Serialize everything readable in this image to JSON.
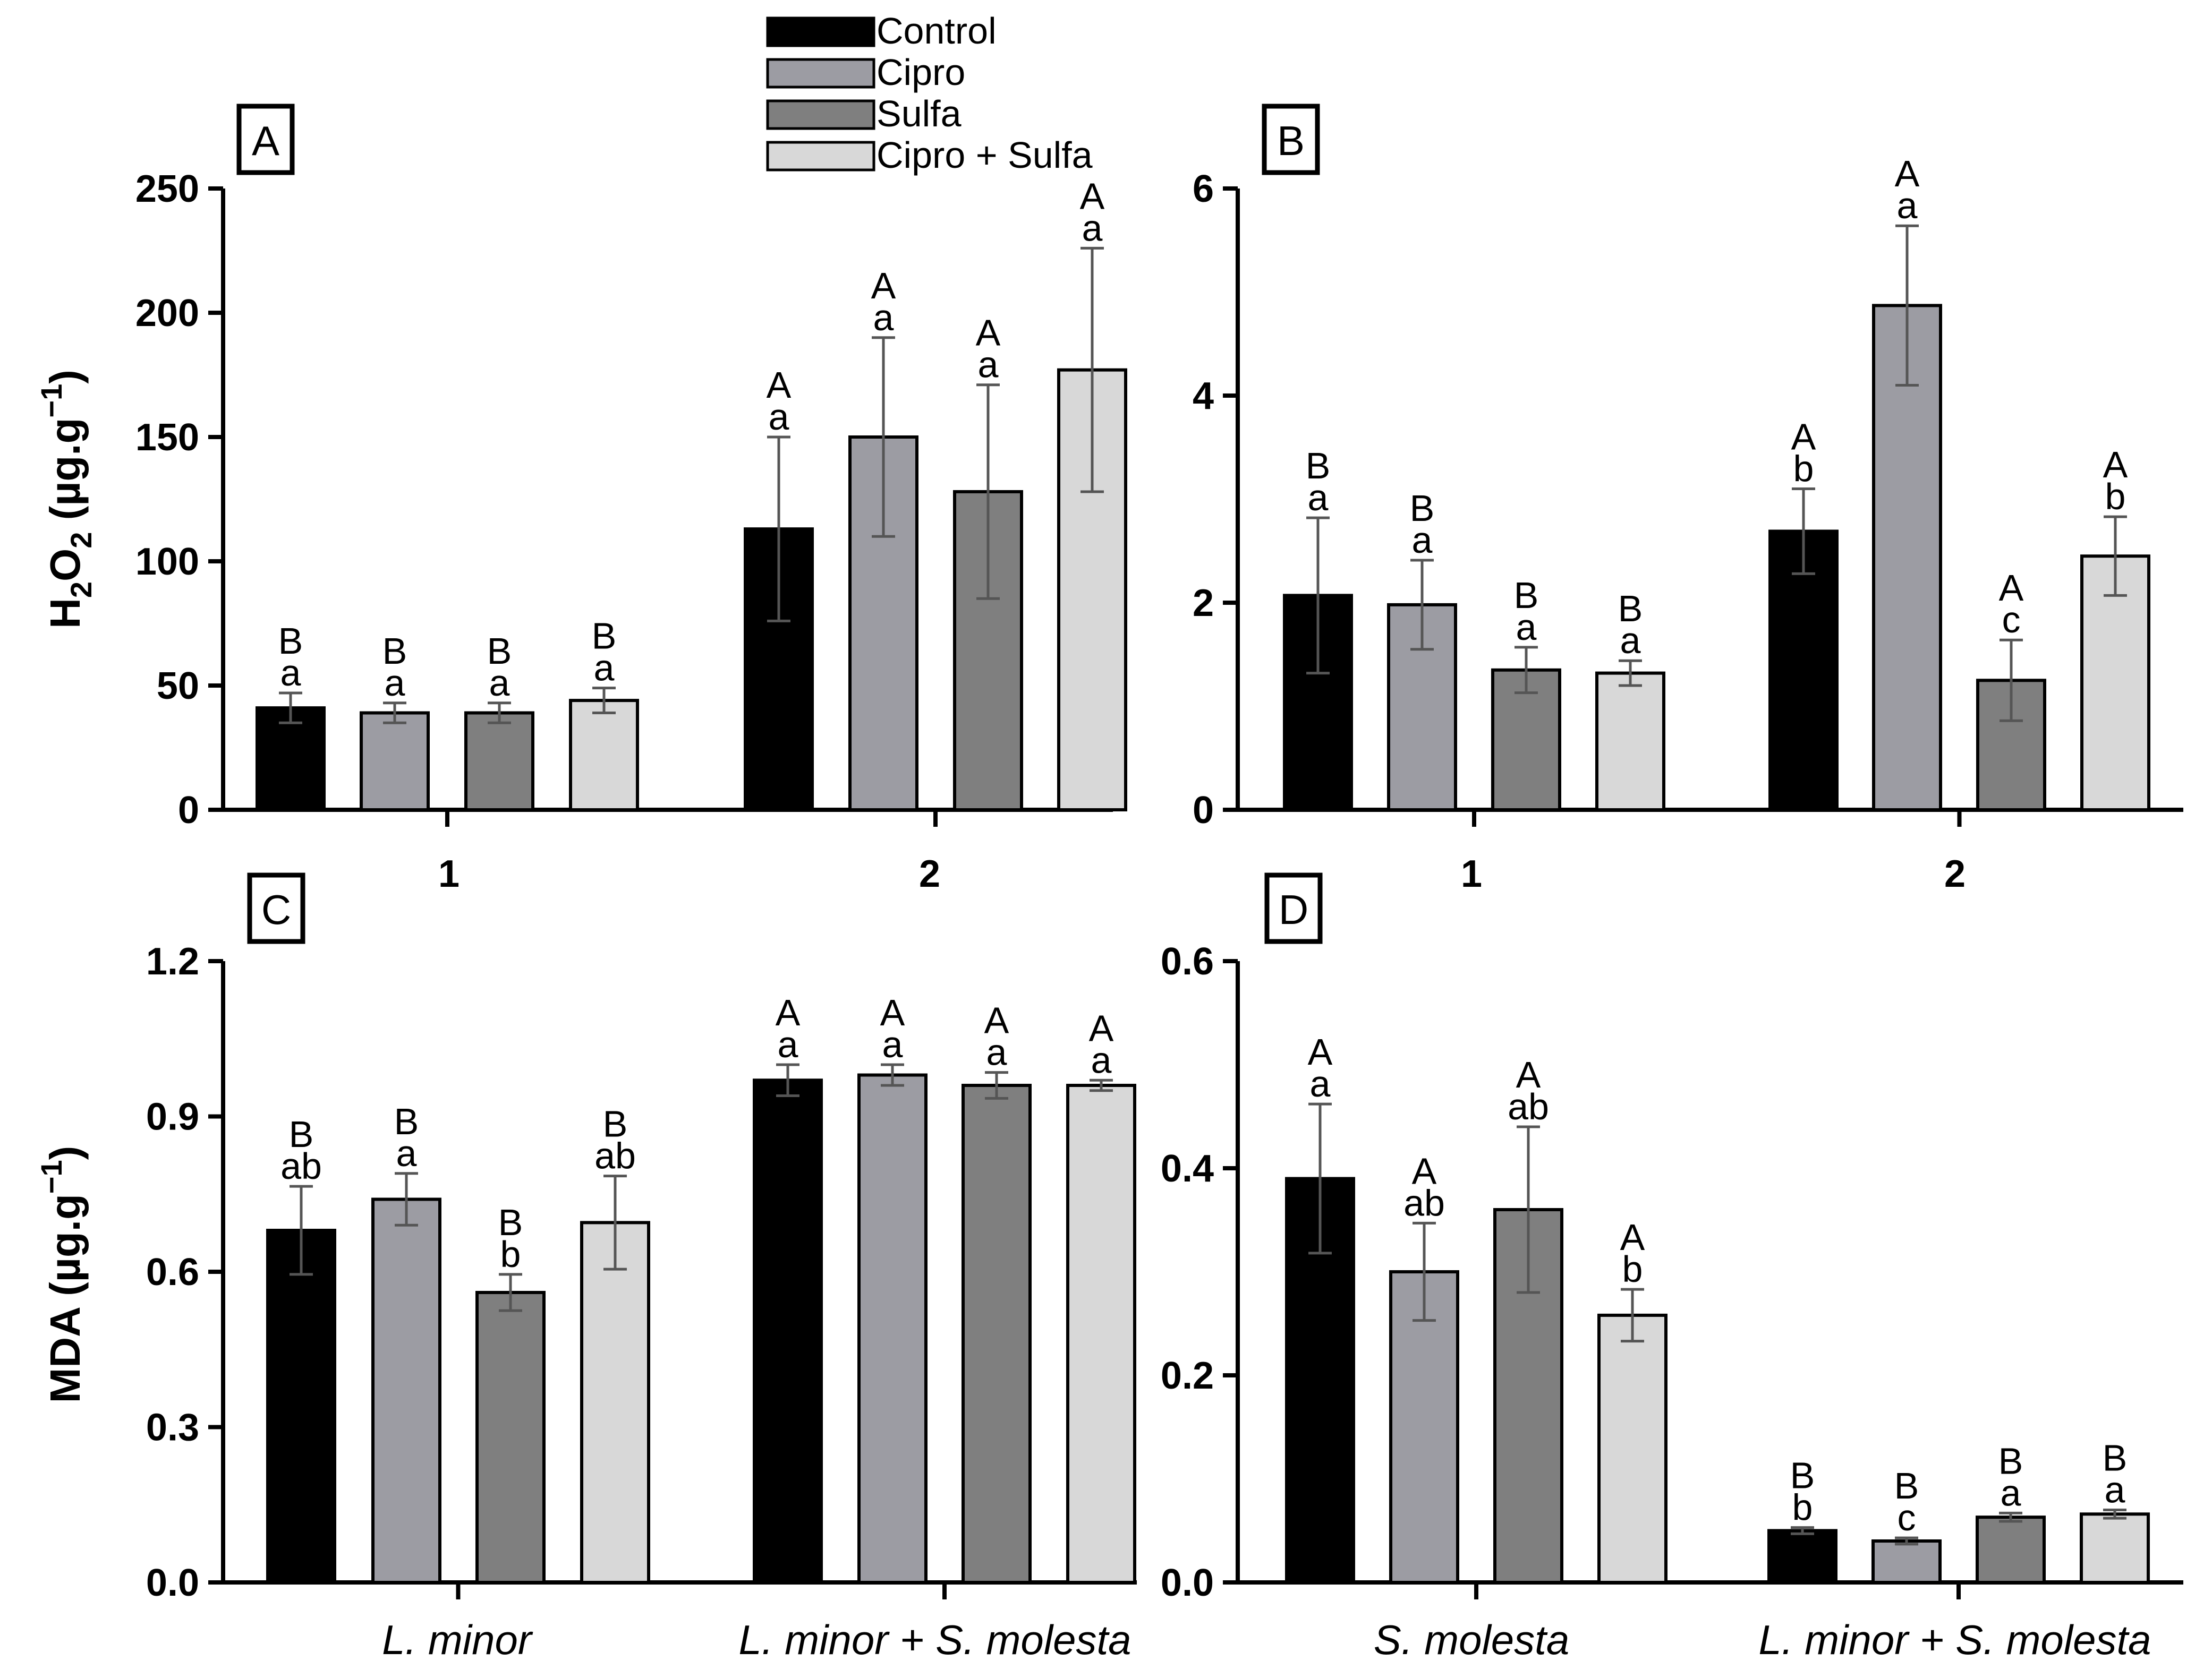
{
  "legend": {
    "items": [
      {
        "label": "Control",
        "color": "#000000"
      },
      {
        "label": "Cipro",
        "color": "#9c9ca3"
      },
      {
        "label": "Sulfa",
        "color": "#7f7f7f"
      },
      {
        "label": "Cipro + Sulfa",
        "color": "#d8d8d8"
      }
    ]
  },
  "chart_data": [
    {
      "panel": "A",
      "type": "bar",
      "ylabel_main": "H",
      "ylabel_sub1": "2",
      "ylabel_mid": "O",
      "ylabel_sub2": "2",
      "ylabel_unit": " (µg.g",
      "ylabel_sup": "−1",
      "ylabel_close": ")",
      "ylim": [
        0,
        250
      ],
      "yticks": [
        "0",
        "50",
        "100",
        "150",
        "200",
        "250"
      ],
      "categories": [
        "1",
        "2"
      ],
      "series": [
        {
          "name": "Control",
          "values": [
            41,
            113
          ],
          "errors": [
            6,
            37
          ],
          "letters": [
            [
              "B",
              "a"
            ],
            [
              "A",
              "a"
            ]
          ]
        },
        {
          "name": "Cipro",
          "values": [
            39,
            150
          ],
          "errors": [
            4,
            40
          ],
          "letters": [
            [
              "B",
              "a"
            ],
            [
              "A",
              "a"
            ]
          ]
        },
        {
          "name": "Sulfa",
          "values": [
            39,
            128
          ],
          "errors": [
            4,
            43
          ],
          "letters": [
            [
              "B",
              "a"
            ],
            [
              "A",
              "a"
            ]
          ]
        },
        {
          "name": "Cipro + Sulfa",
          "values": [
            44,
            177
          ],
          "errors": [
            5,
            49
          ],
          "letters": [
            [
              "B",
              "a"
            ],
            [
              "A",
              "a"
            ]
          ]
        }
      ]
    },
    {
      "panel": "B",
      "type": "bar",
      "ylim": [
        0,
        6
      ],
      "yticks": [
        "0",
        "2",
        "4",
        "6"
      ],
      "categories": [
        "1",
        "2"
      ],
      "series": [
        {
          "name": "Control",
          "values": [
            2.07,
            2.69
          ],
          "errors": [
            0.75,
            0.41
          ],
          "letters": [
            [
              "B",
              "a"
            ],
            [
              "A",
              "b"
            ]
          ]
        },
        {
          "name": "Cipro",
          "values": [
            1.98,
            4.87
          ],
          "errors": [
            0.43,
            0.77
          ],
          "letters": [
            [
              "B",
              "a"
            ],
            [
              "A",
              "a"
            ]
          ]
        },
        {
          "name": "Sulfa",
          "values": [
            1.35,
            1.25
          ],
          "errors": [
            0.22,
            0.39
          ],
          "letters": [
            [
              "B",
              "a"
            ],
            [
              "A",
              "c"
            ]
          ]
        },
        {
          "name": "Cipro + Sulfa",
          "values": [
            1.32,
            2.45
          ],
          "errors": [
            0.12,
            0.38
          ],
          "letters": [
            [
              "B",
              "a"
            ],
            [
              "A",
              "b"
            ]
          ]
        }
      ]
    },
    {
      "panel": "C",
      "type": "bar",
      "ylabel": "MDA (µg.g",
      "ylabel_sup": "−1",
      "ylabel_close": ")",
      "ylim": [
        0,
        1.2
      ],
      "yticks": [
        "0.0",
        "0.3",
        "0.6",
        "0.9",
        "1.2"
      ],
      "categories": [
        "L. minor",
        "L. minor + S. molesta"
      ],
      "series": [
        {
          "name": "Control",
          "values": [
            0.68,
            0.97
          ],
          "errors": [
            0.085,
            0.03
          ],
          "letters": [
            [
              "B",
              "ab"
            ],
            [
              "A",
              "a"
            ]
          ]
        },
        {
          "name": "Cipro",
          "values": [
            0.74,
            0.98
          ],
          "errors": [
            0.05,
            0.02
          ],
          "letters": [
            [
              "B",
              "a"
            ],
            [
              "A",
              "a"
            ]
          ]
        },
        {
          "name": "Sulfa",
          "values": [
            0.56,
            0.96
          ],
          "errors": [
            0.035,
            0.025
          ],
          "letters": [
            [
              "B",
              "b"
            ],
            [
              "A",
              "a"
            ]
          ]
        },
        {
          "name": "Cipro + Sulfa",
          "values": [
            0.695,
            0.96
          ],
          "errors": [
            0.09,
            0.01
          ],
          "letters": [
            [
              "B",
              "ab"
            ],
            [
              "A",
              "a"
            ]
          ]
        }
      ]
    },
    {
      "panel": "D",
      "type": "bar",
      "ylim": [
        0,
        0.6
      ],
      "yticks": [
        "0.0",
        "0.2",
        "0.4",
        "0.6"
      ],
      "categories": [
        "S. molesta",
        "L. minor + S. molesta"
      ],
      "series": [
        {
          "name": "Control",
          "values": [
            0.39,
            0.05
          ],
          "errors": [
            0.072,
            0.003
          ],
          "letters": [
            [
              "A",
              "a"
            ],
            [
              "B",
              "b"
            ]
          ]
        },
        {
          "name": "Cipro",
          "values": [
            0.3,
            0.04
          ],
          "errors": [
            0.047,
            0.003
          ],
          "letters": [
            [
              "A",
              "ab"
            ],
            [
              "B",
              "c"
            ]
          ]
        },
        {
          "name": "Sulfa",
          "values": [
            0.36,
            0.063
          ],
          "errors": [
            0.08,
            0.004
          ],
          "letters": [
            [
              "A",
              "ab"
            ],
            [
              "B",
              "a"
            ]
          ]
        },
        {
          "name": "Cipro + Sulfa",
          "values": [
            0.258,
            0.066
          ],
          "errors": [
            0.025,
            0.004
          ],
          "letters": [
            [
              "A",
              "b"
            ],
            [
              "B",
              "a"
            ]
          ]
        }
      ]
    }
  ]
}
